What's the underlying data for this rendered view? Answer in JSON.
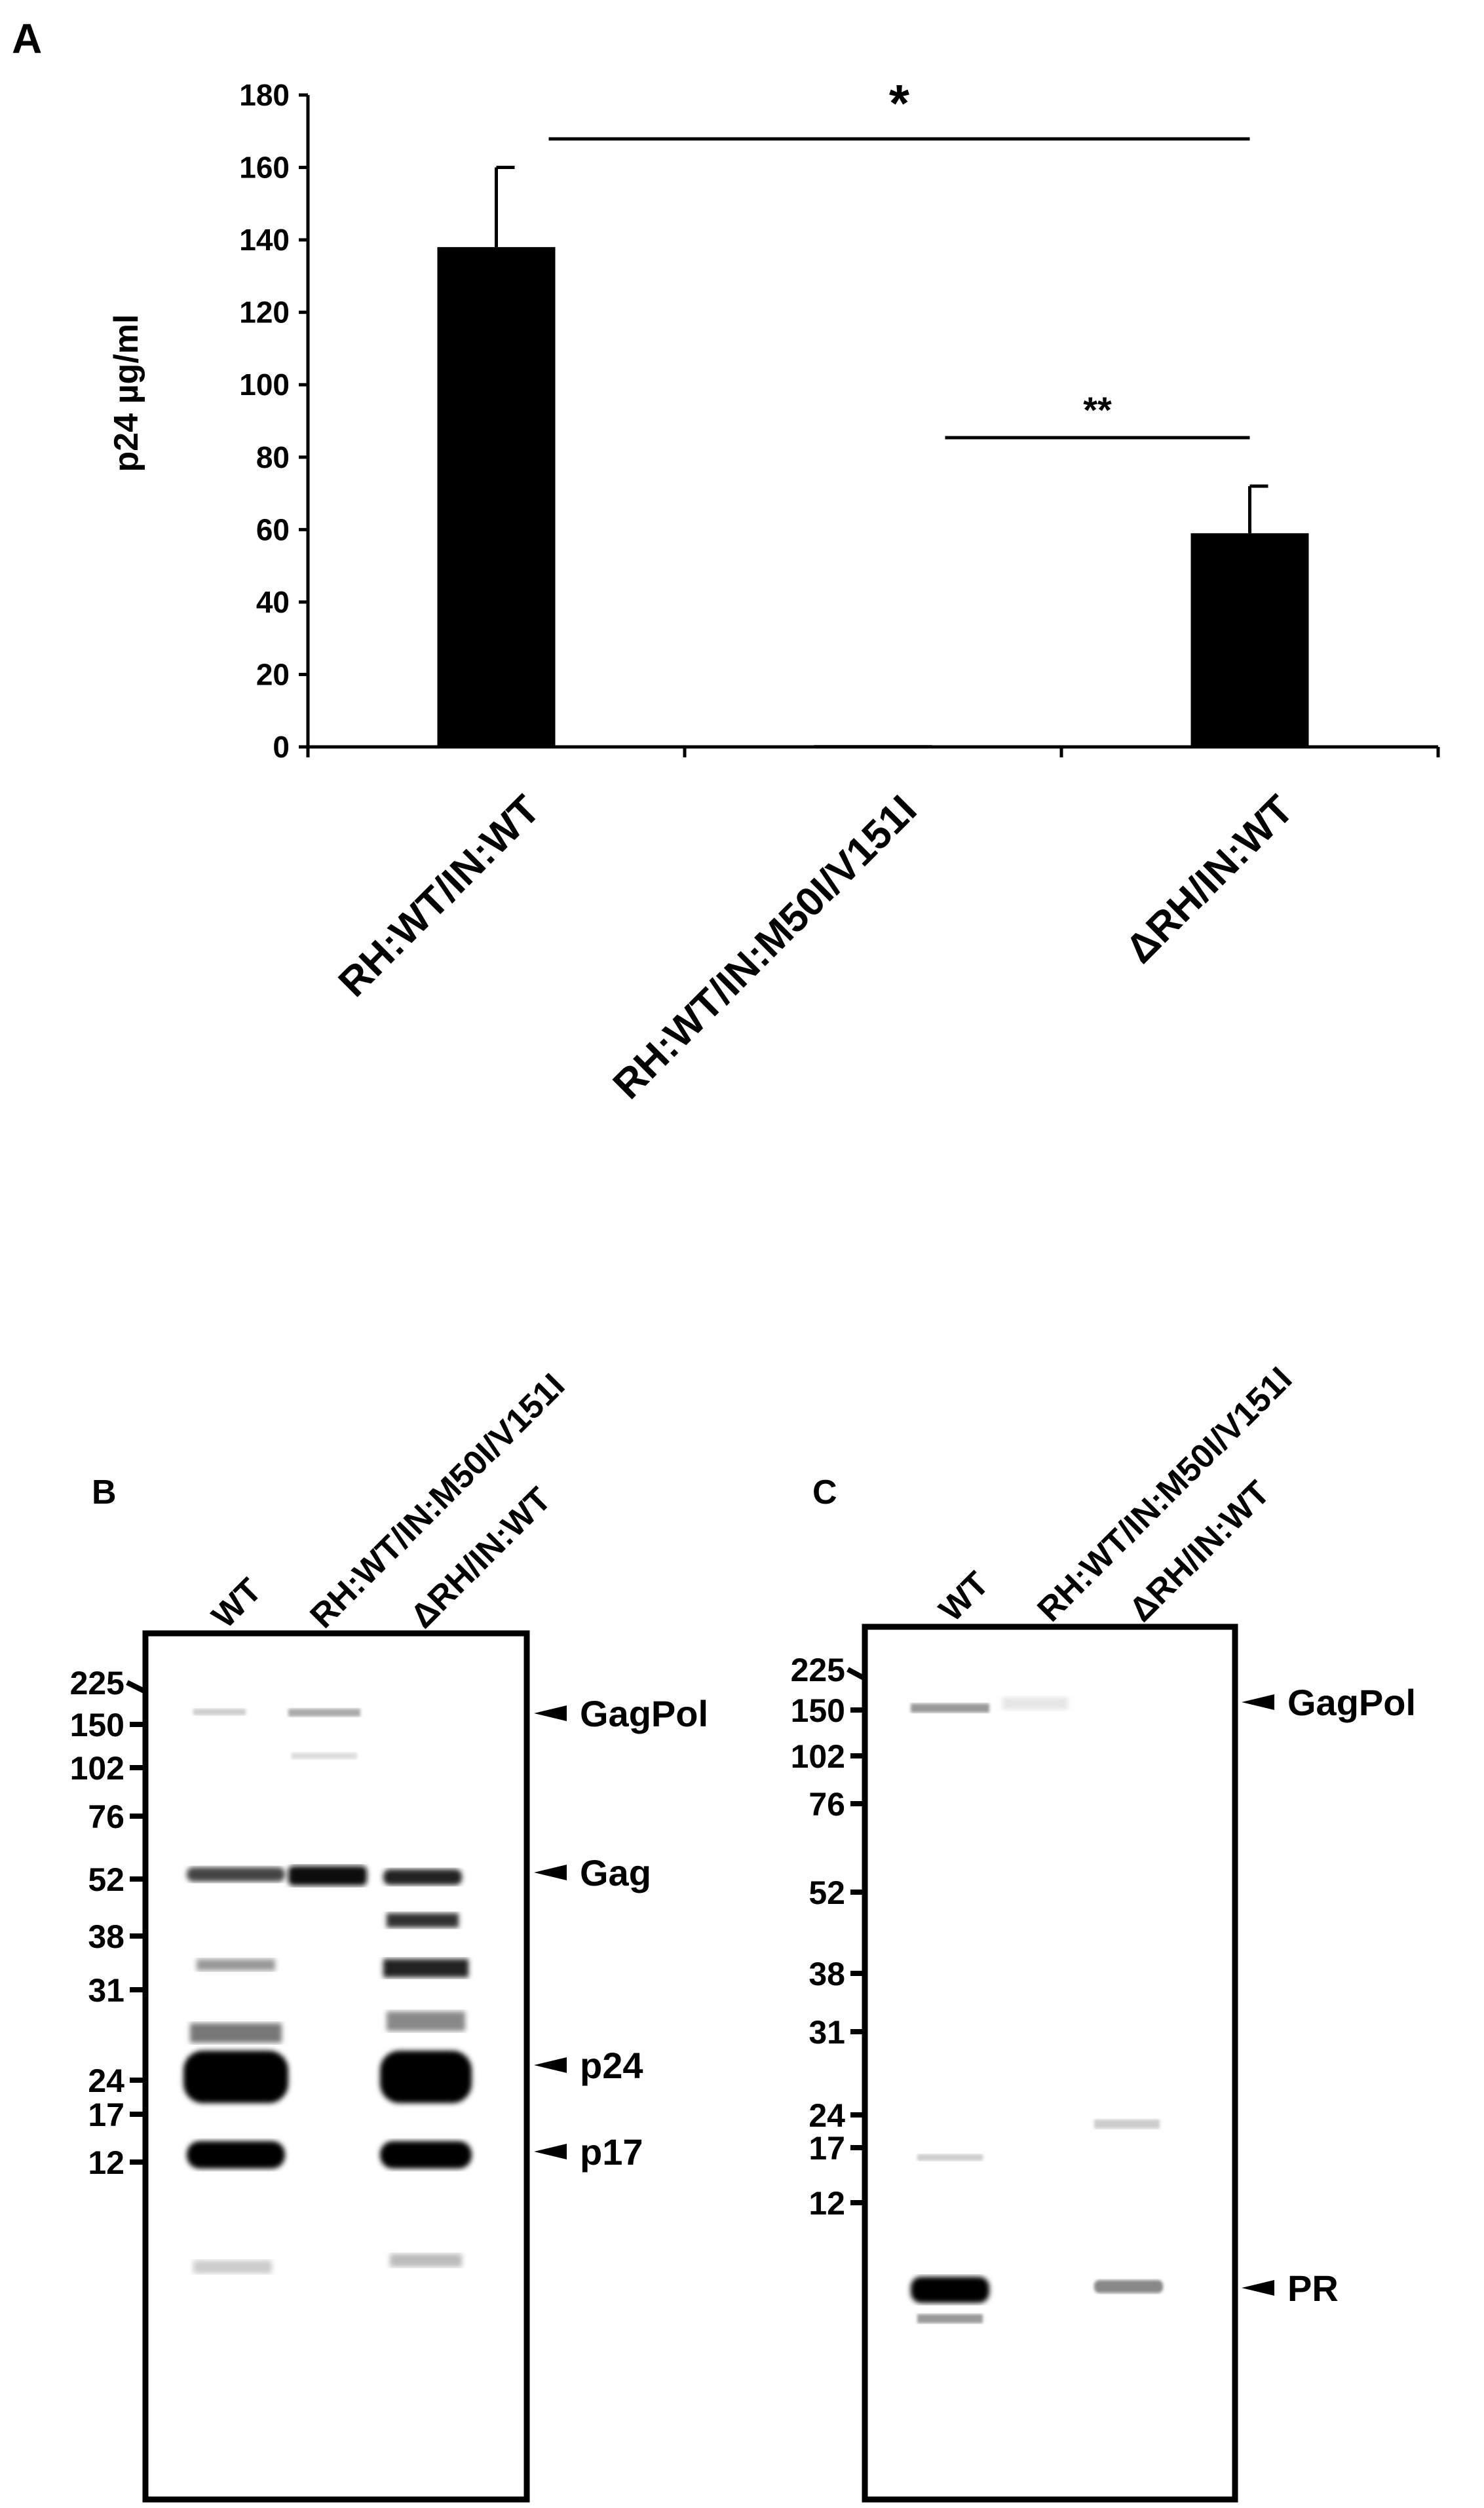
{
  "panel_a": {
    "letter": "A",
    "chart_data": {
      "type": "bar",
      "categories": [
        "RH:WT/IN:WT",
        "RH:WT/IN:M50I/V151I",
        "ΔRH/IN:WT"
      ],
      "values": [
        138,
        0.5,
        59
      ],
      "errors": [
        22,
        0,
        13
      ],
      "ylabel": "p24 µg/ml",
      "ylim": [
        0,
        180
      ],
      "yticks": [
        0,
        20,
        40,
        60,
        80,
        100,
        120,
        140,
        160,
        180
      ],
      "grid": false,
      "bar_color": "#000000",
      "significance": [
        {
          "from": 0,
          "to": 2,
          "label": "*"
        },
        {
          "from": 1,
          "to": 2,
          "label": "**"
        }
      ]
    }
  },
  "panel_b": {
    "letter": "B",
    "lanes": [
      "WT",
      "RH:WT/IN:M50I/V151I",
      "ΔRH/IN:WT"
    ],
    "markers": [
      "225",
      "150",
      "102",
      "76",
      "52",
      "38",
      "31",
      "24",
      "17",
      "12"
    ],
    "bands": [
      "GagPol",
      "Gag",
      "p24",
      "p17"
    ]
  },
  "panel_c": {
    "letter": "C",
    "lanes": [
      "WT",
      "RH:WT/IN:M50I/V151I",
      "ΔRH/IN:WT"
    ],
    "markers": [
      "225",
      "150",
      "102",
      "76",
      "52",
      "38",
      "31",
      "24",
      "17",
      "12"
    ],
    "bands": [
      "GagPol",
      "PR"
    ]
  }
}
